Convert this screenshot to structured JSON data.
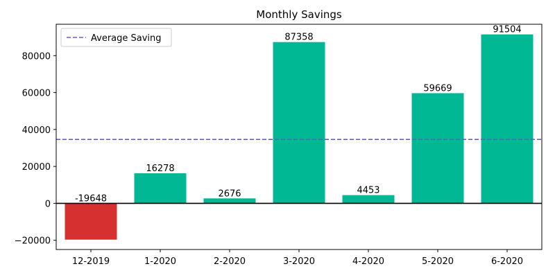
{
  "chart_data": {
    "type": "bar",
    "title": "Monthly Savings",
    "xlabel": "",
    "ylabel": "",
    "categories": [
      "12-2019",
      "1-2020",
      "2-2020",
      "3-2020",
      "4-2020",
      "5-2020",
      "6-2020"
    ],
    "values": [
      -19648,
      16278,
      2676,
      87358,
      4453,
      59669,
      91504
    ],
    "data_labels": [
      "-19648",
      "16278",
      "2676",
      "87358",
      "4453",
      "59669",
      "91504"
    ],
    "ylim": [
      -25000,
      97000
    ],
    "yticks": [
      -20000,
      0,
      20000,
      40000,
      60000,
      80000
    ],
    "ytick_labels": [
      "−20000",
      "0",
      "20000",
      "40000",
      "60000",
      "80000"
    ],
    "average_line": {
      "label": "Average Saving",
      "value": 34613,
      "color": "#6a5acd",
      "style": "dashed"
    },
    "colors": {
      "positive": "#00b894",
      "negative": "#d63031",
      "zero_line": "#000000"
    },
    "legend": {
      "placement": "top-left",
      "entries": [
        "Average Saving"
      ]
    },
    "grid": false
  }
}
